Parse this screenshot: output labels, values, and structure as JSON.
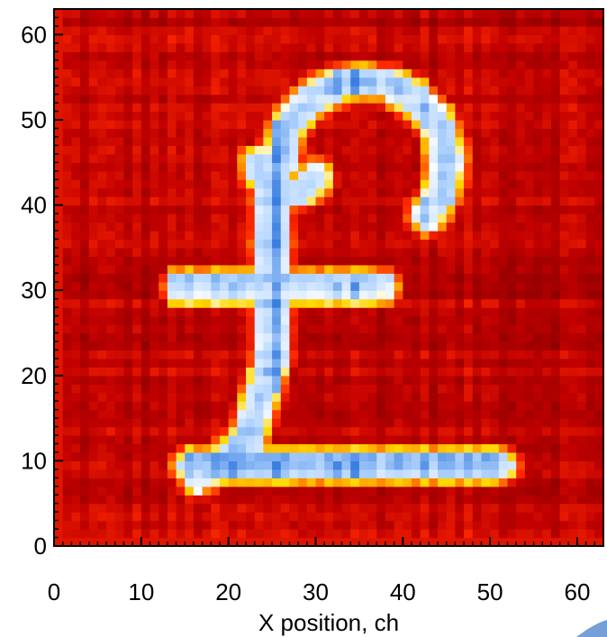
{
  "chart_data": {
    "type": "heatmap",
    "title": "",
    "xlabel": "X position, ch",
    "ylabel": "",
    "xlim": [
      0,
      63
    ],
    "ylim": [
      0,
      63
    ],
    "grid_size": 63,
    "x_ticks": [
      0,
      10,
      20,
      30,
      40,
      50,
      60
    ],
    "y_ticks": [
      0,
      10,
      20,
      30,
      40,
      50,
      60
    ],
    "colormap": [
      "#8b0000",
      "#c00000",
      "#ff2a00",
      "#ffd800",
      "#ffffff",
      "#b8d8ff",
      "#3a7ee0"
    ],
    "image_content": "pound sign (£) glyph — high intensity on stroke",
    "stroke_segments": [
      {
        "kind": "arc",
        "cx": 35.5,
        "cy": 45,
        "r": 9.5,
        "a0": -40,
        "a1": 180,
        "width": 3.2
      },
      {
        "kind": "arc",
        "cx": 27,
        "cy": 45,
        "r": 3.4,
        "a0": 180,
        "a1": 330,
        "width": 3.0
      },
      {
        "kind": "line",
        "x0": 25,
        "y0": 44,
        "x1": 25,
        "y1": 22,
        "width": 3.2
      },
      {
        "kind": "line",
        "x0": 25,
        "y0": 22,
        "x1": 22,
        "y1": 12,
        "width": 3.2
      },
      {
        "kind": "line",
        "x0": 14.5,
        "y0": 30.5,
        "x1": 37.5,
        "y1": 30.5,
        "width": 3.2
      },
      {
        "kind": "line",
        "x0": 16,
        "y0": 9.5,
        "x1": 51,
        "y1": 9.5,
        "width": 3.4
      },
      {
        "kind": "line",
        "x0": 16.5,
        "y0": 8,
        "x1": 22,
        "y1": 12,
        "width": 3.0
      }
    ],
    "bright_columns": [
      20,
      25,
      32,
      34
    ],
    "bright_rows": [
      10,
      31
    ]
  }
}
